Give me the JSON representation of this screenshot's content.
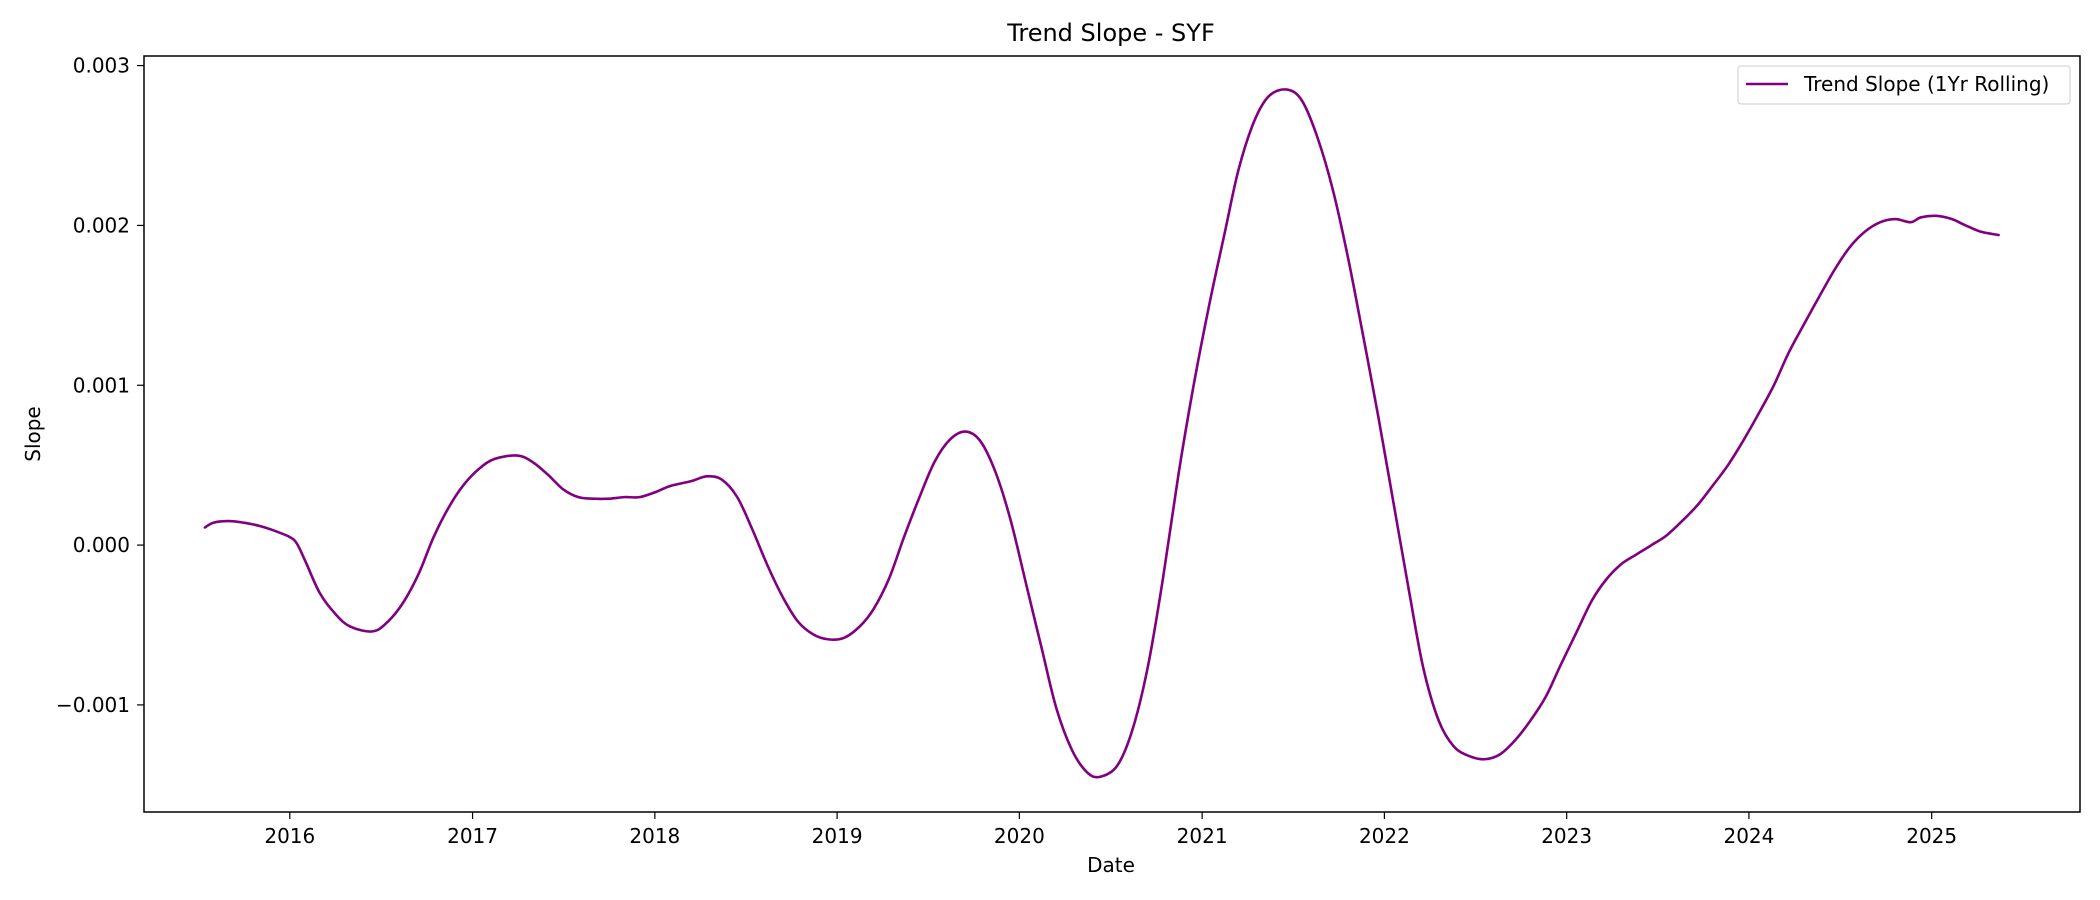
{
  "chart_data": {
    "type": "line",
    "title": "Trend Slope - SYF",
    "xlabel": "Date",
    "ylabel": "Slope",
    "x_ticks": [
      "2016",
      "2017",
      "2018",
      "2019",
      "2020",
      "2021",
      "2022",
      "2023",
      "2024",
      "2025"
    ],
    "y_ticks": [
      "−0.001",
      "0.000",
      "0.001",
      "0.002",
      "0.003"
    ],
    "xlim": [
      "2015-03-15",
      "2025-10-25"
    ],
    "ylim": [
      -0.00167,
      0.00306
    ],
    "grid": false,
    "legend_position": "top-right",
    "color": "#800080",
    "series": [
      {
        "name": "Trend Slope (1Yr Rolling)",
        "color": "#800080",
        "points": [
          [
            "2015-07-15",
            0.00011
          ],
          [
            "2015-08-01",
            0.00014
          ],
          [
            "2015-09-01",
            0.00015
          ],
          [
            "2015-10-01",
            0.00014
          ],
          [
            "2015-11-01",
            0.00012
          ],
          [
            "2015-12-01",
            9e-05
          ],
          [
            "2016-01-01",
            5e-05
          ],
          [
            "2016-01-15",
            1e-05
          ],
          [
            "2016-02-01",
            -0.0001
          ],
          [
            "2016-03-01",
            -0.0003
          ],
          [
            "2016-04-01",
            -0.00043
          ],
          [
            "2016-05-01",
            -0.00051
          ],
          [
            "2016-06-15",
            -0.00054
          ],
          [
            "2016-07-15",
            -0.00048
          ],
          [
            "2016-08-15",
            -0.00036
          ],
          [
            "2016-09-15",
            -0.00018
          ],
          [
            "2016-10-15",
            5e-05
          ],
          [
            "2016-11-15",
            0.00024
          ],
          [
            "2016-12-15",
            0.00038
          ],
          [
            "2017-01-15",
            0.00048
          ],
          [
            "2017-02-15",
            0.00054
          ],
          [
            "2017-04-01",
            0.00056
          ],
          [
            "2017-05-01",
            0.00052
          ],
          [
            "2017-06-01",
            0.00044
          ],
          [
            "2017-07-01",
            0.00035
          ],
          [
            "2017-08-01",
            0.0003
          ],
          [
            "2017-09-01",
            0.00029
          ],
          [
            "2017-10-01",
            0.00029
          ],
          [
            "2017-11-01",
            0.0003
          ],
          [
            "2017-12-01",
            0.0003
          ],
          [
            "2018-01-01",
            0.00033
          ],
          [
            "2018-02-01",
            0.00037
          ],
          [
            "2018-03-15",
            0.0004
          ],
          [
            "2018-04-15",
            0.00043
          ],
          [
            "2018-05-15",
            0.00041
          ],
          [
            "2018-06-15",
            0.0003
          ],
          [
            "2018-07-15",
            0.0001
          ],
          [
            "2018-08-15",
            -0.00013
          ],
          [
            "2018-09-15",
            -0.00033
          ],
          [
            "2018-10-15",
            -0.00048
          ],
          [
            "2018-11-15",
            -0.00056
          ],
          [
            "2018-12-15",
            -0.00059
          ],
          [
            "2019-01-15",
            -0.00058
          ],
          [
            "2019-02-15",
            -0.00051
          ],
          [
            "2019-03-15",
            -0.0004
          ],
          [
            "2019-04-15",
            -0.00021
          ],
          [
            "2019-05-15",
            5e-05
          ],
          [
            "2019-06-15",
            0.0003
          ],
          [
            "2019-07-15",
            0.00052
          ],
          [
            "2019-08-15",
            0.00066
          ],
          [
            "2019-09-15",
            0.00071
          ],
          [
            "2019-10-15",
            0.00065
          ],
          [
            "2019-11-15",
            0.00045
          ],
          [
            "2019-12-15",
            0.00015
          ],
          [
            "2020-01-15",
            -0.00025
          ],
          [
            "2020-02-15",
            -0.00065
          ],
          [
            "2020-03-15",
            -0.00102
          ],
          [
            "2020-04-15",
            -0.00128
          ],
          [
            "2020-05-15",
            -0.00142
          ],
          [
            "2020-06-10",
            -0.00145
          ],
          [
            "2020-07-15",
            -0.00138
          ],
          [
            "2020-08-15",
            -0.00115
          ],
          [
            "2020-09-15",
            -0.00075
          ],
          [
            "2020-10-15",
            -0.0002
          ],
          [
            "2020-11-15",
            0.00045
          ],
          [
            "2020-12-15",
            0.001
          ],
          [
            "2021-01-15",
            0.0015
          ],
          [
            "2021-02-15",
            0.00195
          ],
          [
            "2021-03-15",
            0.00235
          ],
          [
            "2021-04-15",
            0.00265
          ],
          [
            "2021-05-15",
            0.00281
          ],
          [
            "2021-06-20",
            0.00285
          ],
          [
            "2021-07-20",
            0.00278
          ],
          [
            "2021-08-20",
            0.00255
          ],
          [
            "2021-09-20",
            0.00222
          ],
          [
            "2021-10-20",
            0.0018
          ],
          [
            "2021-11-20",
            0.0013
          ],
          [
            "2021-12-20",
            0.0008
          ],
          [
            "2022-01-20",
            0.00025
          ],
          [
            "2022-02-20",
            -0.0003
          ],
          [
            "2022-03-20",
            -0.00077
          ],
          [
            "2022-04-20",
            -0.0011
          ],
          [
            "2022-05-20",
            -0.00126
          ],
          [
            "2022-06-20",
            -0.00132
          ],
          [
            "2022-07-20",
            -0.00134
          ],
          [
            "2022-08-20",
            -0.00131
          ],
          [
            "2022-09-20",
            -0.00122
          ],
          [
            "2022-10-20",
            -0.0011
          ],
          [
            "2022-11-20",
            -0.00095
          ],
          [
            "2022-12-20",
            -0.00075
          ],
          [
            "2023-01-20",
            -0.00055
          ],
          [
            "2023-02-20",
            -0.00035
          ],
          [
            "2023-03-20",
            -0.00022
          ],
          [
            "2023-04-20",
            -0.00012
          ],
          [
            "2023-05-20",
            -6e-05
          ],
          [
            "2023-06-20",
            0.0
          ],
          [
            "2023-07-20",
            6e-05
          ],
          [
            "2023-08-20",
            0.00015
          ],
          [
            "2023-09-20",
            0.00025
          ],
          [
            "2023-10-20",
            0.00037
          ],
          [
            "2023-11-20",
            0.0005
          ],
          [
            "2023-12-20",
            0.00065
          ],
          [
            "2024-01-20",
            0.00082
          ],
          [
            "2024-02-20",
            0.001
          ],
          [
            "2024-03-20",
            0.0012
          ],
          [
            "2024-04-20",
            0.00138
          ],
          [
            "2024-05-20",
            0.00155
          ],
          [
            "2024-06-20",
            0.00172
          ],
          [
            "2024-07-20",
            0.00186
          ],
          [
            "2024-08-20",
            0.00196
          ],
          [
            "2024-09-20",
            0.00202
          ],
          [
            "2024-10-20",
            0.00204
          ],
          [
            "2024-11-20",
            0.00202
          ],
          [
            "2024-12-10",
            0.00205
          ],
          [
            "2025-01-10",
            0.00206
          ],
          [
            "2025-02-10",
            0.00204
          ],
          [
            "2025-03-10",
            0.002
          ],
          [
            "2025-04-10",
            0.00196
          ],
          [
            "2025-05-15",
            0.00194
          ]
        ]
      }
    ]
  }
}
